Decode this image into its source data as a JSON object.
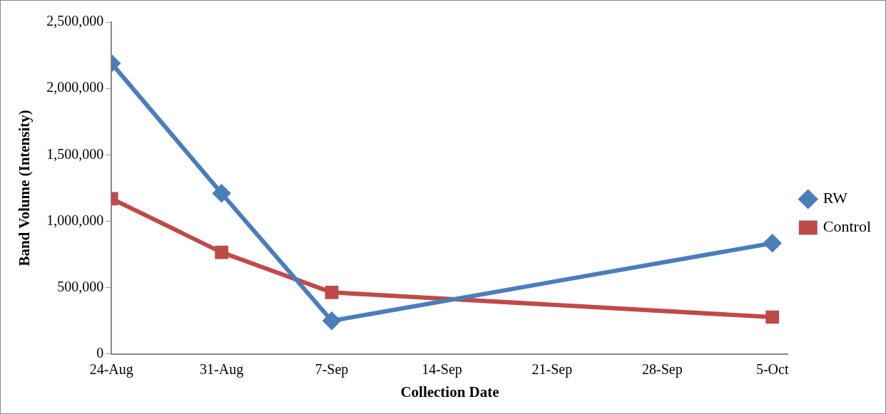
{
  "chart_data": {
    "type": "line",
    "xlabel": "Collection Date",
    "ylabel": "Band Volume (Intensity)",
    "x": [
      "--08-24",
      "--08-31",
      "--09-07",
      "--10-05"
    ],
    "series": [
      {
        "name": "RW",
        "color": "#4a7ebb",
        "marker": "diamond",
        "values": [
          2190000,
          1210000,
          250000,
          835000
        ]
      },
      {
        "name": "Control",
        "color": "#be4b48",
        "marker": "square",
        "values": [
          1170000,
          766000,
          464000,
          278000
        ]
      }
    ],
    "xlim": [
      "--08-24",
      "--10-06"
    ],
    "xticks": [
      {
        "value": "--08-24",
        "label": "24-Aug"
      },
      {
        "value": "--08-31",
        "label": "31-Aug"
      },
      {
        "value": "--09-07",
        "label": "7-Sep"
      },
      {
        "value": "--09-14",
        "label": "14-Sep"
      },
      {
        "value": "--09-21",
        "label": "21-Sep"
      },
      {
        "value": "--09-28",
        "label": "28-Sep"
      },
      {
        "value": "--10-05",
        "label": "5-Oct"
      }
    ],
    "ylim": [
      0,
      2500000
    ],
    "yticks": [
      {
        "value": 0,
        "label": "0"
      },
      {
        "value": 500000,
        "label": "500,000"
      },
      {
        "value": 1000000,
        "label": "1,000,000"
      },
      {
        "value": 1500000,
        "label": "1,500,000"
      },
      {
        "value": 2000000,
        "label": "2,000,000"
      },
      {
        "value": 2500000,
        "label": "2,500,000"
      }
    ],
    "grid": false,
    "legend": "right",
    "line_style": "solid"
  }
}
